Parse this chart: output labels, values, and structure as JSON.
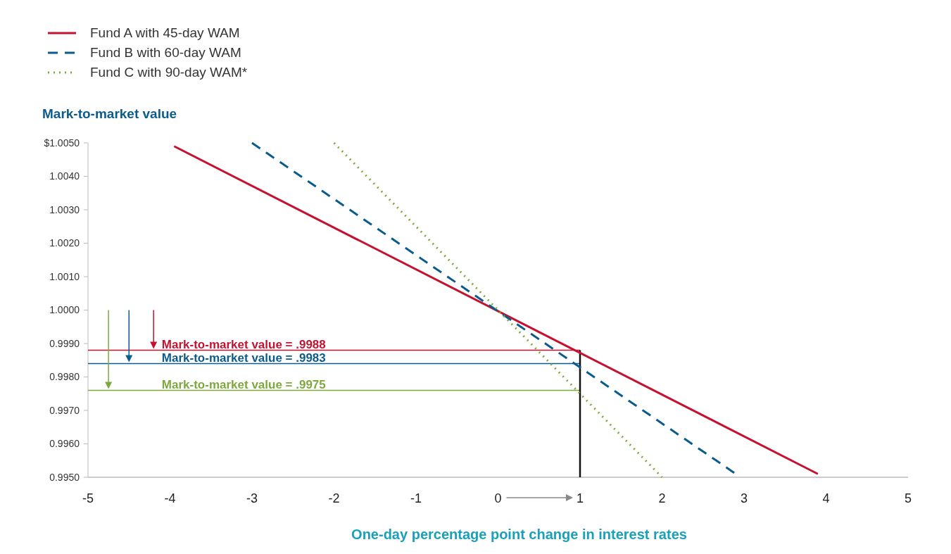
{
  "chart_data": {
    "type": "line",
    "xlabel": "One-day percentage point change in interest rates",
    "ylabel": "Mark-to-market value",
    "xlim": [
      -5,
      5
    ],
    "xticks": [
      -5,
      -4,
      -3,
      -2,
      -1,
      0,
      1,
      2,
      3,
      4,
      5
    ],
    "ylim": [
      0.995,
      1.005
    ],
    "yticks": [
      {
        "value": 0.995,
        "label": "0.9950"
      },
      {
        "value": 0.996,
        "label": "0.9960"
      },
      {
        "value": 0.997,
        "label": "0.9970"
      },
      {
        "value": 0.998,
        "label": "0.9980"
      },
      {
        "value": 0.999,
        "label": "0.9990"
      },
      {
        "value": 1.0,
        "label": "1.0000"
      },
      {
        "value": 1.001,
        "label": "1.0010"
      },
      {
        "value": 1.002,
        "label": "1.0020"
      },
      {
        "value": 1.003,
        "label": "1.0030"
      },
      {
        "value": 1.004,
        "label": "1.0040"
      },
      {
        "value": 1.005,
        "label": "$1.0050"
      }
    ],
    "grid": false,
    "legend": "top left",
    "marker": "none",
    "series": [
      {
        "name": "Fund A with 45-day WAM",
        "color": "#c41230",
        "line_style": "solid",
        "x": [
          -3.95,
          3.9
        ],
        "values": [
          1.0049,
          0.9951
        ]
      },
      {
        "name": "Fund B with 60-day WAM",
        "color": "#0b5b8c",
        "line_style": "dashed",
        "x": [
          -3,
          2.9
        ],
        "values": [
          1.005,
          0.9951
        ]
      },
      {
        "name": "Fund C with 90-day WAM*",
        "color": "#7fa83c",
        "line_style": "dotted",
        "x": [
          -2,
          2
        ],
        "values": [
          1.005,
          0.995
        ]
      }
    ],
    "ref_lines": [
      {
        "axis": "x",
        "value": 1,
        "color": "#111111"
      },
      {
        "axis": "y",
        "value": 0.9988,
        "label": "Mark-to-market value = .9988",
        "color": "#c41230"
      },
      {
        "axis": "y",
        "value": 0.9984,
        "label": "Mark-to-market value = .9983",
        "color": "#0b5b8c"
      },
      {
        "axis": "y",
        "value": 0.9976,
        "label": "Mark-to-market value = .9975",
        "color": "#7fa83c"
      }
    ]
  }
}
